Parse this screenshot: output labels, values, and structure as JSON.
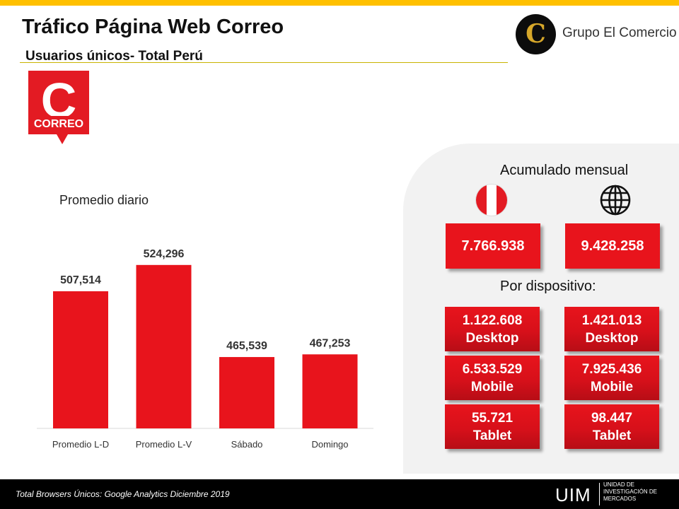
{
  "header": {
    "title": "Tráfico Página Web Correo",
    "subtitle": "Usuarios únicos- Total Perú",
    "brand_initial": "C",
    "brand_name": "Grupo El Comercio",
    "correo_logo_text": "CORREO",
    "correo_logo_letter": "C"
  },
  "colors": {
    "accent_red": "#e8141c",
    "top_bar": "#ffc000",
    "panel_bg": "#f2f2f2"
  },
  "chart_data": {
    "type": "bar",
    "title": "Promedio diario",
    "categories": [
      "Promedio L-D",
      "Promedio L-V",
      "Sábado",
      "Domingo"
    ],
    "values": [
      507514,
      524296,
      465539,
      467253
    ],
    "value_labels": [
      "507,514",
      "524,296",
      "465,539",
      "467,253"
    ],
    "ylim": [
      420000,
      540000
    ],
    "grid": false,
    "color": "#e8141c"
  },
  "summary": {
    "acumulado_label": "Acumulado mensual",
    "peru_icon": "peru-flag-icon",
    "world_icon": "globe-icon",
    "peru_total": "7.766.938",
    "world_total": "9.428.258",
    "dispositivo_label": "Por dispositivo:",
    "peru_devices": [
      {
        "value": "1.122.608",
        "device": "Desktop"
      },
      {
        "value": "6.533.529",
        "device": "Mobile"
      },
      {
        "value": "55.721",
        "device": "Tablet"
      }
    ],
    "world_devices": [
      {
        "value": "1.421.013",
        "device": "Desktop"
      },
      {
        "value": "7.925.436",
        "device": "Mobile"
      },
      {
        "value": "98.447",
        "device": "Tablet"
      }
    ]
  },
  "footer": {
    "note": "Total Browsers Únicos: Google Analytics Diciembre 2019",
    "uim": "UIM",
    "uim_line1": "UNIDAD DE",
    "uim_line2": "INVESTIGACIÓN DE",
    "uim_line3": "MERCADOS"
  }
}
